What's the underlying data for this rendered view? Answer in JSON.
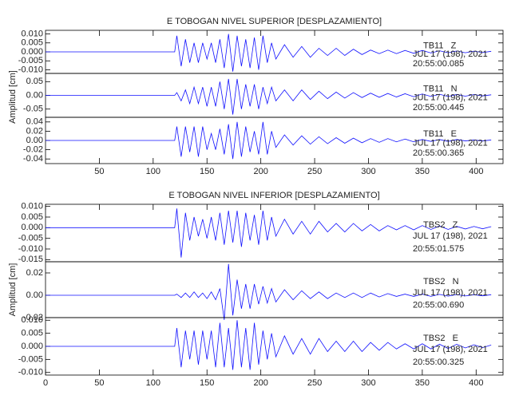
{
  "chart_data": [
    {
      "type": "line",
      "title": "E TOBOGAN NIVEL SUPERIOR [DESPLAZAMIENTO]",
      "y_label": "Amplitud [cm]",
      "xlim": [
        0,
        425
      ],
      "xticks": [
        50,
        100,
        150,
        200,
        250,
        300,
        350,
        400
      ],
      "x": [
        0,
        120,
        122,
        126,
        130,
        134,
        138,
        142,
        146,
        150,
        154,
        158,
        162,
        166,
        170,
        174,
        178,
        182,
        186,
        190,
        194,
        198,
        202,
        206,
        210,
        214,
        222,
        230,
        238,
        246,
        254,
        262,
        270,
        278,
        286,
        294,
        302,
        310,
        318,
        326,
        334,
        342,
        350,
        358,
        366,
        374,
        382,
        390,
        398,
        406,
        414
      ],
      "panels": [
        {
          "station": "TB11   Z",
          "date": "JUL 17 (198), 2021",
          "time": "20:55:00.085",
          "color": "#1010ff",
          "ylim": [
            -0.012,
            0.012
          ],
          "yticks": [
            {
              "value": 0.01,
              "label": "0.010"
            },
            {
              "value": 0.005,
              "label": "0.005"
            },
            {
              "value": 0,
              "label": "0.000"
            },
            {
              "value": -0.005,
              "label": "-0.005"
            },
            {
              "value": -0.01,
              "label": "-0.010"
            }
          ],
          "values": [
            0,
            0,
            0.009,
            -0.008,
            0.007,
            -0.006,
            0.005,
            -0.006,
            0.005,
            -0.004,
            0.005,
            -0.006,
            0.007,
            -0.009,
            0.01,
            -0.011,
            0.009,
            -0.008,
            0.007,
            -0.009,
            0.008,
            -0.01,
            0.009,
            -0.006,
            0.005,
            -0.004,
            0.004,
            -0.003,
            0.003,
            -0.003,
            0.002,
            -0.002,
            0.002,
            -0.002,
            0.0015,
            -0.0015,
            0.001,
            -0.001,
            0.001,
            -0.001,
            0.0008,
            -0.0008,
            0.0008,
            -0.0006,
            0.0006,
            -0.0005,
            0.0005,
            -0.0005,
            0.0004,
            -0.0004,
            0.0003
          ]
        },
        {
          "station": "TB11   N",
          "date": "JUL 17 (198), 2021",
          "time": "20:55:00.445",
          "color": "#1010ff",
          "ylim": [
            -0.08,
            0.08
          ],
          "yticks": [
            {
              "value": 0.05,
              "label": "0.05"
            },
            {
              "value": 0,
              "label": "0.00"
            },
            {
              "value": -0.05,
              "label": "-0.05"
            }
          ],
          "values": [
            0,
            0,
            0.01,
            -0.02,
            0.02,
            -0.03,
            0.03,
            -0.03,
            0.03,
            -0.04,
            0.03,
            -0.04,
            0.05,
            -0.05,
            0.06,
            -0.07,
            0.06,
            -0.05,
            0.04,
            -0.04,
            0.04,
            -0.05,
            0.03,
            -0.03,
            0.03,
            -0.02,
            0.02,
            -0.02,
            0.02,
            -0.015,
            0.015,
            -0.012,
            0.012,
            -0.01,
            0.01,
            -0.008,
            0.008,
            -0.007,
            0.007,
            -0.006,
            0.006,
            -0.005,
            0.005,
            -0.004,
            0.004,
            -0.004,
            0.003,
            -0.003,
            0.003,
            -0.002,
            0.002
          ]
        },
        {
          "station": "TB11   E",
          "date": "JUL 17 (198), 2021",
          "time": "20:55:00.365",
          "color": "#1010ff",
          "ylim": [
            -0.05,
            0.05
          ],
          "yticks": [
            {
              "value": 0.04,
              "label": "0.04"
            },
            {
              "value": 0.02,
              "label": "0.02"
            },
            {
              "value": 0,
              "label": "0.00"
            },
            {
              "value": -0.02,
              "label": "-0.02"
            },
            {
              "value": -0.04,
              "label": "-0.04"
            }
          ],
          "values": [
            0,
            0,
            0.03,
            -0.035,
            0.03,
            -0.025,
            0.03,
            -0.035,
            0.03,
            -0.02,
            0.015,
            -0.02,
            0.025,
            -0.03,
            0.035,
            -0.04,
            0.04,
            -0.035,
            0.03,
            -0.025,
            0.02,
            -0.03,
            0.04,
            -0.03,
            0.02,
            -0.015,
            0.012,
            -0.01,
            0.01,
            -0.008,
            0.008,
            -0.007,
            0.006,
            -0.006,
            0.005,
            -0.005,
            0.004,
            -0.004,
            0.004,
            -0.003,
            0.003,
            -0.003,
            0.002,
            -0.002,
            0.002,
            -0.002,
            0.002,
            -0.001,
            0.001,
            -0.001,
            0.001
          ]
        }
      ]
    },
    {
      "type": "line",
      "title": "E TOBOGAN NIVEL INFERIOR [DESPLAZAMIENTO]",
      "y_label": "Amplitud [cm]",
      "xlim": [
        0,
        425
      ],
      "xticks": [
        0,
        50,
        100,
        150,
        200,
        250,
        300,
        350,
        400
      ],
      "x": [
        0,
        120,
        122,
        126,
        130,
        134,
        138,
        142,
        146,
        150,
        154,
        158,
        162,
        166,
        170,
        174,
        178,
        182,
        186,
        190,
        194,
        198,
        202,
        206,
        210,
        214,
        222,
        230,
        238,
        246,
        254,
        262,
        270,
        278,
        286,
        294,
        302,
        310,
        318,
        326,
        334,
        342,
        350,
        358,
        366,
        374,
        382,
        390,
        398,
        406,
        414
      ],
      "panels": [
        {
          "station": "TBS2   Z",
          "date": "JUL 17 (198), 2021",
          "time": "20:55:01.575",
          "color": "#1010ff",
          "ylim": [
            -0.016,
            0.011
          ],
          "yticks": [
            {
              "value": 0.01,
              "label": "0.010"
            },
            {
              "value": 0.005,
              "label": "0.005"
            },
            {
              "value": 0,
              "label": "0.000"
            },
            {
              "value": -0.005,
              "label": "-0.005"
            },
            {
              "value": -0.01,
              "label": "-0.010"
            },
            {
              "value": -0.015,
              "label": "-0.015"
            }
          ],
          "values": [
            0,
            0,
            0.009,
            -0.014,
            0.007,
            -0.006,
            0.005,
            -0.004,
            0.004,
            -0.005,
            0.005,
            -0.006,
            0.007,
            -0.008,
            0.008,
            -0.007,
            0.008,
            -0.009,
            0.007,
            -0.006,
            0.006,
            -0.008,
            0.008,
            -0.006,
            0.005,
            -0.004,
            0.004,
            -0.003,
            0.003,
            -0.003,
            0.003,
            -0.002,
            0.002,
            -0.002,
            0.002,
            -0.0015,
            0.0015,
            -0.0015,
            0.001,
            -0.001,
            0.001,
            -0.001,
            0.001,
            -0.0008,
            0.0008,
            -0.0008,
            0.0006,
            -0.0006,
            0.0006,
            -0.0005,
            0.0005
          ]
        },
        {
          "station": "TBS2   N",
          "date": "JUL 17 (198), 2021",
          "time": "20:55:00.690",
          "color": "#1010ff",
          "ylim": [
            -0.02,
            0.03
          ],
          "yticks": [
            {
              "value": 0.02,
              "label": "0.02"
            },
            {
              "value": 0,
              "label": "0.00"
            },
            {
              "value": -0.02,
              "label": "-0.02"
            }
          ],
          "values": [
            0,
            0,
            0.001,
            -0.002,
            0.002,
            -0.002,
            0.003,
            -0.002,
            0.002,
            -0.003,
            0.003,
            -0.004,
            0.006,
            -0.022,
            0.028,
            -0.018,
            0.014,
            -0.012,
            0.01,
            -0.012,
            0.01,
            -0.008,
            0.008,
            -0.007,
            0.006,
            -0.006,
            0.005,
            -0.004,
            0.004,
            -0.003,
            0.003,
            -0.003,
            0.002,
            -0.002,
            0.002,
            -0.002,
            0.002,
            -0.0015,
            0.0015,
            -0.001,
            0.001,
            -0.001,
            0.001,
            -0.001,
            0.0008,
            -0.0008,
            0.0006,
            -0.0006,
            0.0005,
            -0.0005,
            0.0005
          ]
        },
        {
          "station": "TBS2   E",
          "date": "JUL 17 (198), 2021",
          "time": "20:55:00.325",
          "color": "#1010ff",
          "ylim": [
            -0.011,
            0.011
          ],
          "yticks": [
            {
              "value": 0.01,
              "label": "0.010"
            },
            {
              "value": 0.005,
              "label": "0.005"
            },
            {
              "value": 0,
              "label": "0.000"
            },
            {
              "value": -0.005,
              "label": "-0.005"
            },
            {
              "value": -0.01,
              "label": "-0.010"
            }
          ],
          "values": [
            0,
            0,
            0.007,
            -0.008,
            0.006,
            -0.005,
            0.006,
            -0.007,
            0.006,
            -0.005,
            0.006,
            -0.008,
            0.009,
            -0.008,
            0.007,
            -0.009,
            0.01,
            -0.008,
            0.007,
            -0.009,
            0.009,
            -0.007,
            0.006,
            -0.005,
            0.005,
            -0.004,
            0.004,
            -0.003,
            0.003,
            -0.003,
            0.003,
            -0.002,
            0.002,
            -0.002,
            0.002,
            -0.002,
            0.0015,
            -0.0015,
            0.0015,
            -0.001,
            0.001,
            -0.001,
            0.001,
            -0.001,
            0.0008,
            -0.0008,
            0.0008,
            -0.0006,
            0.0006,
            -0.0005,
            0.0005
          ]
        }
      ]
    }
  ]
}
